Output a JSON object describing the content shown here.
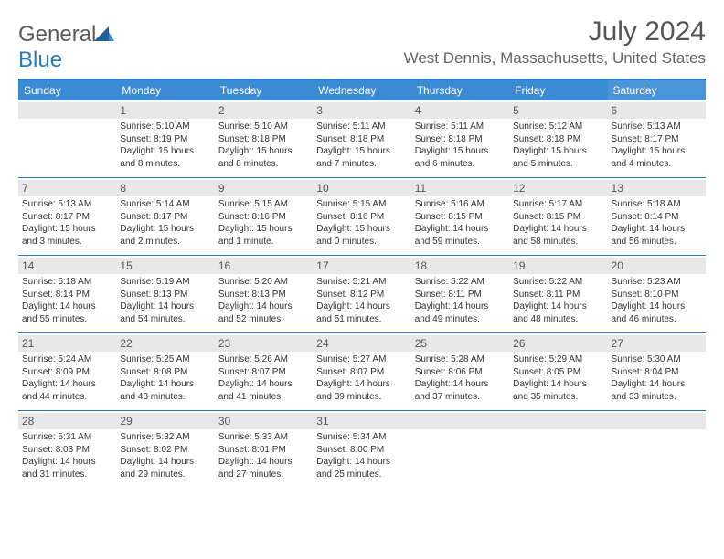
{
  "brand": {
    "part1": "General",
    "part2": "Blue"
  },
  "title": "July 2024",
  "location": "West Dennis, Massachusetts, United States",
  "colors": {
    "header_bg": "#3b8bd4",
    "border": "#2a7ac0",
    "daynum_bg": "#e8e8e8"
  },
  "day_headers": [
    "Sunday",
    "Monday",
    "Tuesday",
    "Wednesday",
    "Thursday",
    "Friday",
    "Saturday"
  ],
  "weeks": [
    [
      {
        "n": "",
        "sr": "",
        "ss": "",
        "dl": ""
      },
      {
        "n": "1",
        "sr": "Sunrise: 5:10 AM",
        "ss": "Sunset: 8:19 PM",
        "dl": "Daylight: 15 hours and 8 minutes."
      },
      {
        "n": "2",
        "sr": "Sunrise: 5:10 AM",
        "ss": "Sunset: 8:18 PM",
        "dl": "Daylight: 15 hours and 8 minutes."
      },
      {
        "n": "3",
        "sr": "Sunrise: 5:11 AM",
        "ss": "Sunset: 8:18 PM",
        "dl": "Daylight: 15 hours and 7 minutes."
      },
      {
        "n": "4",
        "sr": "Sunrise: 5:11 AM",
        "ss": "Sunset: 8:18 PM",
        "dl": "Daylight: 15 hours and 6 minutes."
      },
      {
        "n": "5",
        "sr": "Sunrise: 5:12 AM",
        "ss": "Sunset: 8:18 PM",
        "dl": "Daylight: 15 hours and 5 minutes."
      },
      {
        "n": "6",
        "sr": "Sunrise: 5:13 AM",
        "ss": "Sunset: 8:17 PM",
        "dl": "Daylight: 15 hours and 4 minutes."
      }
    ],
    [
      {
        "n": "7",
        "sr": "Sunrise: 5:13 AM",
        "ss": "Sunset: 8:17 PM",
        "dl": "Daylight: 15 hours and 3 minutes."
      },
      {
        "n": "8",
        "sr": "Sunrise: 5:14 AM",
        "ss": "Sunset: 8:17 PM",
        "dl": "Daylight: 15 hours and 2 minutes."
      },
      {
        "n": "9",
        "sr": "Sunrise: 5:15 AM",
        "ss": "Sunset: 8:16 PM",
        "dl": "Daylight: 15 hours and 1 minute."
      },
      {
        "n": "10",
        "sr": "Sunrise: 5:15 AM",
        "ss": "Sunset: 8:16 PM",
        "dl": "Daylight: 15 hours and 0 minutes."
      },
      {
        "n": "11",
        "sr": "Sunrise: 5:16 AM",
        "ss": "Sunset: 8:15 PM",
        "dl": "Daylight: 14 hours and 59 minutes."
      },
      {
        "n": "12",
        "sr": "Sunrise: 5:17 AM",
        "ss": "Sunset: 8:15 PM",
        "dl": "Daylight: 14 hours and 58 minutes."
      },
      {
        "n": "13",
        "sr": "Sunrise: 5:18 AM",
        "ss": "Sunset: 8:14 PM",
        "dl": "Daylight: 14 hours and 56 minutes."
      }
    ],
    [
      {
        "n": "14",
        "sr": "Sunrise: 5:18 AM",
        "ss": "Sunset: 8:14 PM",
        "dl": "Daylight: 14 hours and 55 minutes."
      },
      {
        "n": "15",
        "sr": "Sunrise: 5:19 AM",
        "ss": "Sunset: 8:13 PM",
        "dl": "Daylight: 14 hours and 54 minutes."
      },
      {
        "n": "16",
        "sr": "Sunrise: 5:20 AM",
        "ss": "Sunset: 8:13 PM",
        "dl": "Daylight: 14 hours and 52 minutes."
      },
      {
        "n": "17",
        "sr": "Sunrise: 5:21 AM",
        "ss": "Sunset: 8:12 PM",
        "dl": "Daylight: 14 hours and 51 minutes."
      },
      {
        "n": "18",
        "sr": "Sunrise: 5:22 AM",
        "ss": "Sunset: 8:11 PM",
        "dl": "Daylight: 14 hours and 49 minutes."
      },
      {
        "n": "19",
        "sr": "Sunrise: 5:22 AM",
        "ss": "Sunset: 8:11 PM",
        "dl": "Daylight: 14 hours and 48 minutes."
      },
      {
        "n": "20",
        "sr": "Sunrise: 5:23 AM",
        "ss": "Sunset: 8:10 PM",
        "dl": "Daylight: 14 hours and 46 minutes."
      }
    ],
    [
      {
        "n": "21",
        "sr": "Sunrise: 5:24 AM",
        "ss": "Sunset: 8:09 PM",
        "dl": "Daylight: 14 hours and 44 minutes."
      },
      {
        "n": "22",
        "sr": "Sunrise: 5:25 AM",
        "ss": "Sunset: 8:08 PM",
        "dl": "Daylight: 14 hours and 43 minutes."
      },
      {
        "n": "23",
        "sr": "Sunrise: 5:26 AM",
        "ss": "Sunset: 8:07 PM",
        "dl": "Daylight: 14 hours and 41 minutes."
      },
      {
        "n": "24",
        "sr": "Sunrise: 5:27 AM",
        "ss": "Sunset: 8:07 PM",
        "dl": "Daylight: 14 hours and 39 minutes."
      },
      {
        "n": "25",
        "sr": "Sunrise: 5:28 AM",
        "ss": "Sunset: 8:06 PM",
        "dl": "Daylight: 14 hours and 37 minutes."
      },
      {
        "n": "26",
        "sr": "Sunrise: 5:29 AM",
        "ss": "Sunset: 8:05 PM",
        "dl": "Daylight: 14 hours and 35 minutes."
      },
      {
        "n": "27",
        "sr": "Sunrise: 5:30 AM",
        "ss": "Sunset: 8:04 PM",
        "dl": "Daylight: 14 hours and 33 minutes."
      }
    ],
    [
      {
        "n": "28",
        "sr": "Sunrise: 5:31 AM",
        "ss": "Sunset: 8:03 PM",
        "dl": "Daylight: 14 hours and 31 minutes."
      },
      {
        "n": "29",
        "sr": "Sunrise: 5:32 AM",
        "ss": "Sunset: 8:02 PM",
        "dl": "Daylight: 14 hours and 29 minutes."
      },
      {
        "n": "30",
        "sr": "Sunrise: 5:33 AM",
        "ss": "Sunset: 8:01 PM",
        "dl": "Daylight: 14 hours and 27 minutes."
      },
      {
        "n": "31",
        "sr": "Sunrise: 5:34 AM",
        "ss": "Sunset: 8:00 PM",
        "dl": "Daylight: 14 hours and 25 minutes."
      },
      {
        "n": "",
        "sr": "",
        "ss": "",
        "dl": ""
      },
      {
        "n": "",
        "sr": "",
        "ss": "",
        "dl": ""
      },
      {
        "n": "",
        "sr": "",
        "ss": "",
        "dl": ""
      }
    ]
  ]
}
